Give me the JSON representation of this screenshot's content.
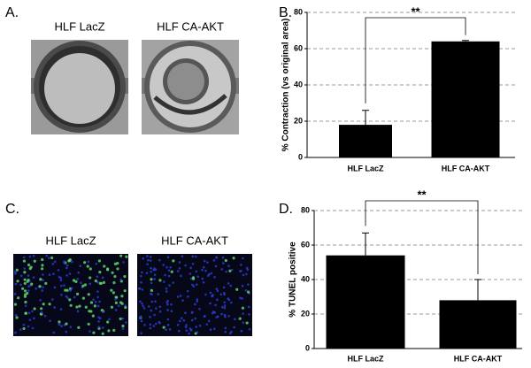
{
  "panels": [
    {
      "label": "A.",
      "images": [
        "HLF LacZ",
        "HLF CA-AKT"
      ]
    },
    {
      "label": "C.",
      "images": [
        "HLF LacZ",
        "HLF CA-AKT"
      ]
    }
  ],
  "chart_data": [
    {
      "type": "bar",
      "panel_label": "B.",
      "y_label": "% Contraction (vs original area)",
      "categories": [
        "HLF LacZ",
        "HLF CA-AKT"
      ],
      "values": [
        18,
        64
      ],
      "errors": [
        8,
        0.5
      ],
      "color": "#000000",
      "ylim": [
        0,
        80
      ],
      "yticks": [
        0,
        20,
        40,
        60,
        80
      ],
      "grid": true,
      "annotation": "**"
    },
    {
      "type": "bar",
      "panel_label": "D.",
      "y_label": "% TUNEL positive",
      "categories": [
        "HLF LacZ",
        "HLF CA-AKT"
      ],
      "values": [
        54,
        28
      ],
      "errors": [
        13,
        12
      ],
      "color": "#000000",
      "ylim": [
        0,
        80
      ],
      "yticks": [
        0,
        20,
        40,
        60,
        80
      ],
      "grid": true,
      "annotation": "**"
    }
  ]
}
